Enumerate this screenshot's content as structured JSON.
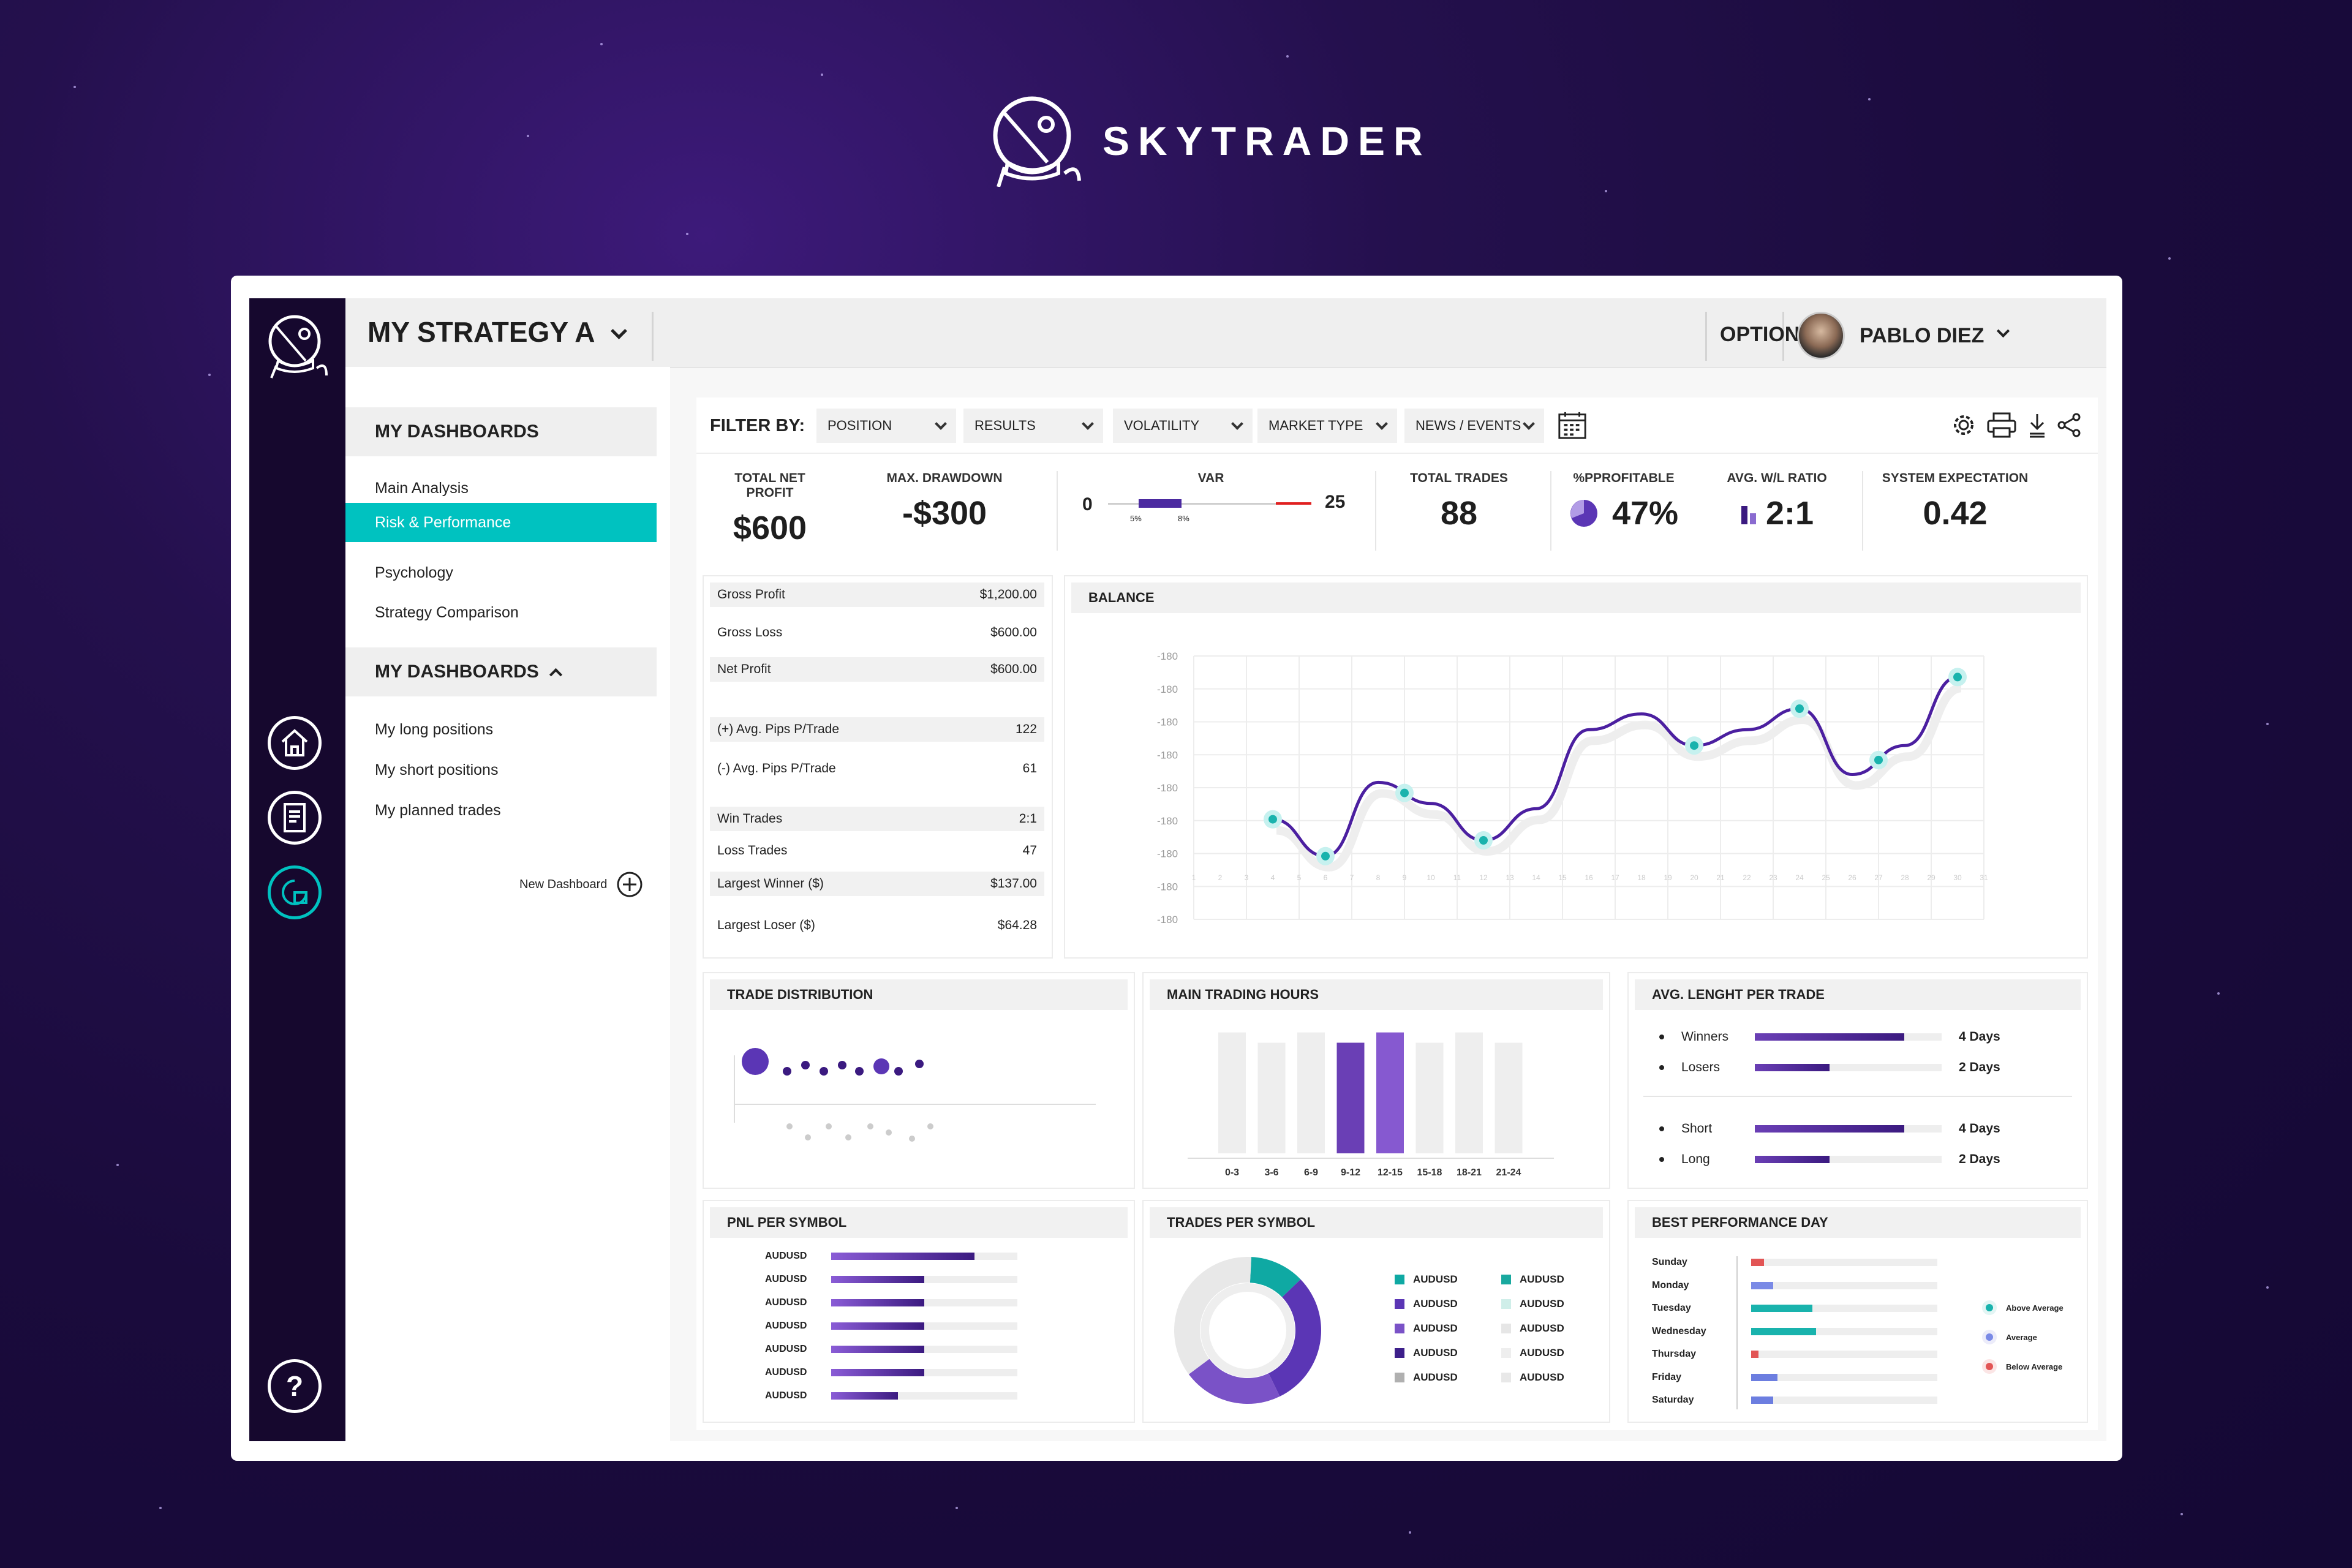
{
  "brand": {
    "name": "SKYTRADER"
  },
  "header": {
    "strategy_title": "MY STRATEGY A",
    "options_label": "OPTIONS",
    "user_name": "PABLO DIEZ"
  },
  "sidebar": {
    "section1_title": "MY DASHBOARDS",
    "section1_items": [
      "Main Analysis",
      "Risk & Performance",
      "Psychology",
      "Strategy Comparison"
    ],
    "active_item": "Risk & Performance",
    "section2_title": "MY DASHBOARDS",
    "section2_items": [
      "My long positions",
      "My short positions",
      "My planned trades"
    ],
    "new_dashboard_label": "New Dashboard",
    "rail_icons": [
      "helmet-logo-icon",
      "home-icon",
      "document-icon",
      "chart-icon",
      "help-icon"
    ]
  },
  "filters": {
    "label": "FILTER BY:",
    "dropdowns": [
      "POSITION",
      "RESULTS",
      "VOLATILITY",
      "MARKET TYPE",
      "NEWS / EVENTS"
    ]
  },
  "kpis": {
    "total_net_profit": {
      "label": "TOTAL NET PROFIT",
      "value": "$600"
    },
    "max_drawdown": {
      "label": "MAX. DRAWDOWN",
      "value": "-$300"
    },
    "var": {
      "label": "VAR",
      "min": "0",
      "max": "25",
      "mark1": "5%",
      "mark2": "8%"
    },
    "total_trades": {
      "label": "TOTAL TRADES",
      "value": "88"
    },
    "profitable": {
      "label": "%PPROFITABLE",
      "value": "47%"
    },
    "avg_wl_ratio": {
      "label": "AVG. W/L RATIO",
      "value": "2:1"
    },
    "system_expectation": {
      "label": "SYSTEM EXPECTATION",
      "value": "0.42"
    }
  },
  "stats": [
    {
      "label": "Gross Profit",
      "value": "$1,200.00"
    },
    {
      "label": "Gross Loss",
      "value": "$600.00"
    },
    {
      "label": "Net Profit",
      "value": "$600.00"
    },
    {
      "label": "(+) Avg. Pips P/Trade",
      "value": "122"
    },
    {
      "label": "(-) Avg. Pips P/Trade",
      "value": "61"
    },
    {
      "label": "Win Trades",
      "value": "2:1"
    },
    {
      "label": "Loss Trades",
      "value": "47"
    },
    {
      "label": "Largest Winner ($)",
      "value": "$137.00"
    },
    {
      "label": "Largest Loser ($)",
      "value": "$64.28"
    }
  ],
  "cards": {
    "balance": "BALANCE",
    "trade_distribution": "TRADE DISTRIBUTION",
    "main_trading_hours": "MAIN TRADING HOURS",
    "avg_length": "AVG. LENGHT PER TRADE",
    "pnl_per_symbol": "PNL PER SYMBOL",
    "trades_per_symbol": "TRADES PER SYMBOL",
    "best_performance_day": "BEST PERFORMANCE DAY"
  },
  "chart_data": [
    {
      "type": "line",
      "title": "BALANCE",
      "y_tick_labels": [
        "-180",
        "-180",
        "-180",
        "-180",
        "-180",
        "-180",
        "-180",
        "-180",
        "-180"
      ],
      "x": [
        1,
        2,
        3,
        4,
        5,
        6,
        7,
        8,
        9,
        10,
        11,
        12,
        13,
        14,
        15,
        16,
        17,
        18,
        19,
        20,
        21,
        22,
        23,
        24,
        25,
        26,
        27,
        28,
        29,
        30,
        31
      ],
      "points": [
        {
          "x": 4,
          "y": 0.38
        },
        {
          "x": 6,
          "y": 0.24
        },
        {
          "x": 8,
          "y": 0.52
        },
        {
          "x": 10,
          "y": 0.44
        },
        {
          "x": 12,
          "y": 0.3
        },
        {
          "x": 14,
          "y": 0.42
        },
        {
          "x": 16,
          "y": 0.72
        },
        {
          "x": 18,
          "y": 0.78
        },
        {
          "x": 20,
          "y": 0.66
        },
        {
          "x": 22,
          "y": 0.72
        },
        {
          "x": 24,
          "y": 0.8
        },
        {
          "x": 26,
          "y": 0.55
        },
        {
          "x": 28,
          "y": 0.66
        },
        {
          "x": 30,
          "y": 0.92
        }
      ],
      "highlighted_x": [
        4,
        6,
        9,
        12,
        20,
        24,
        27,
        31
      ]
    },
    {
      "type": "bar",
      "title": "MAIN TRADING HOURS",
      "categories": [
        "0-3",
        "3-6",
        "6-9",
        "9-12",
        "12-15",
        "15-18",
        "18-21",
        "21-24"
      ],
      "values": [
        0.94,
        0.86,
        0.94,
        0.86,
        0.94,
        0.86,
        0.94,
        0.86
      ],
      "highlighted": [
        "9-12",
        "12-15"
      ]
    },
    {
      "type": "bar",
      "title": "PNL PER SYMBOL",
      "categories": [
        "AUDUSD",
        "AUDUSD",
        "AUDUSD",
        "AUDUSD",
        "AUDUSD",
        "AUDUSD",
        "AUDUSD"
      ],
      "values": [
        0.77,
        0.5,
        0.5,
        0.5,
        0.5,
        0.5,
        0.36
      ]
    },
    {
      "type": "pie",
      "title": "TRADES PER SYMBOL",
      "labels": [
        "AUDUSD",
        "AUDUSD",
        "AUDUSD",
        "AUDUSD",
        "AUDUSD",
        "AUDUSD",
        "AUDUSD",
        "AUDUSD",
        "AUDUSD",
        "AUDUSD"
      ],
      "values": [
        12,
        30,
        22,
        0,
        0,
        0,
        0,
        0,
        0,
        36
      ],
      "colors": [
        "#0fa9a3",
        "#5b36b5",
        "#7a52c7",
        "#3d1f8a",
        "#b0b0b0",
        "#19a99f",
        "#cfeee9",
        "#e6e6e6",
        "#eeeeee",
        "#e8e8e8"
      ]
    },
    {
      "type": "bar",
      "title": "AVG. LENGHT PER TRADE",
      "categories": [
        "Winners",
        "Losers",
        "Short",
        "Long"
      ],
      "values": [
        4,
        2,
        4,
        2
      ],
      "labels": [
        "4 Days",
        "2 Days",
        "4 Days",
        "2 Days"
      ]
    },
    {
      "type": "bar",
      "title": "BEST PERFORMANCE DAY",
      "categories": [
        "Sunday",
        "Monday",
        "Tuesday",
        "Wednesday",
        "Thursday",
        "Friday",
        "Saturday"
      ],
      "values": [
        0.07,
        0.12,
        0.33,
        0.35,
        0.04,
        0.14,
        0.12
      ],
      "legend": [
        "Above Average",
        "Average",
        "Below Average"
      ]
    }
  ],
  "trade_distribution": {
    "top": [
      {
        "r": 22
      },
      {
        "r": 7
      },
      {
        "r": 7
      },
      {
        "r": 7
      },
      {
        "r": 7
      },
      {
        "r": 7
      },
      {
        "r": 13
      },
      {
        "r": 7
      },
      {
        "r": 7
      }
    ],
    "bottom_count": 8
  },
  "colors": {
    "accent": "#00c2c0",
    "purple": "#5b36b5",
    "dark_rail": "#16082e",
    "above": "#19b3ad",
    "average": "#7a8ae6",
    "below": "#e25555"
  }
}
